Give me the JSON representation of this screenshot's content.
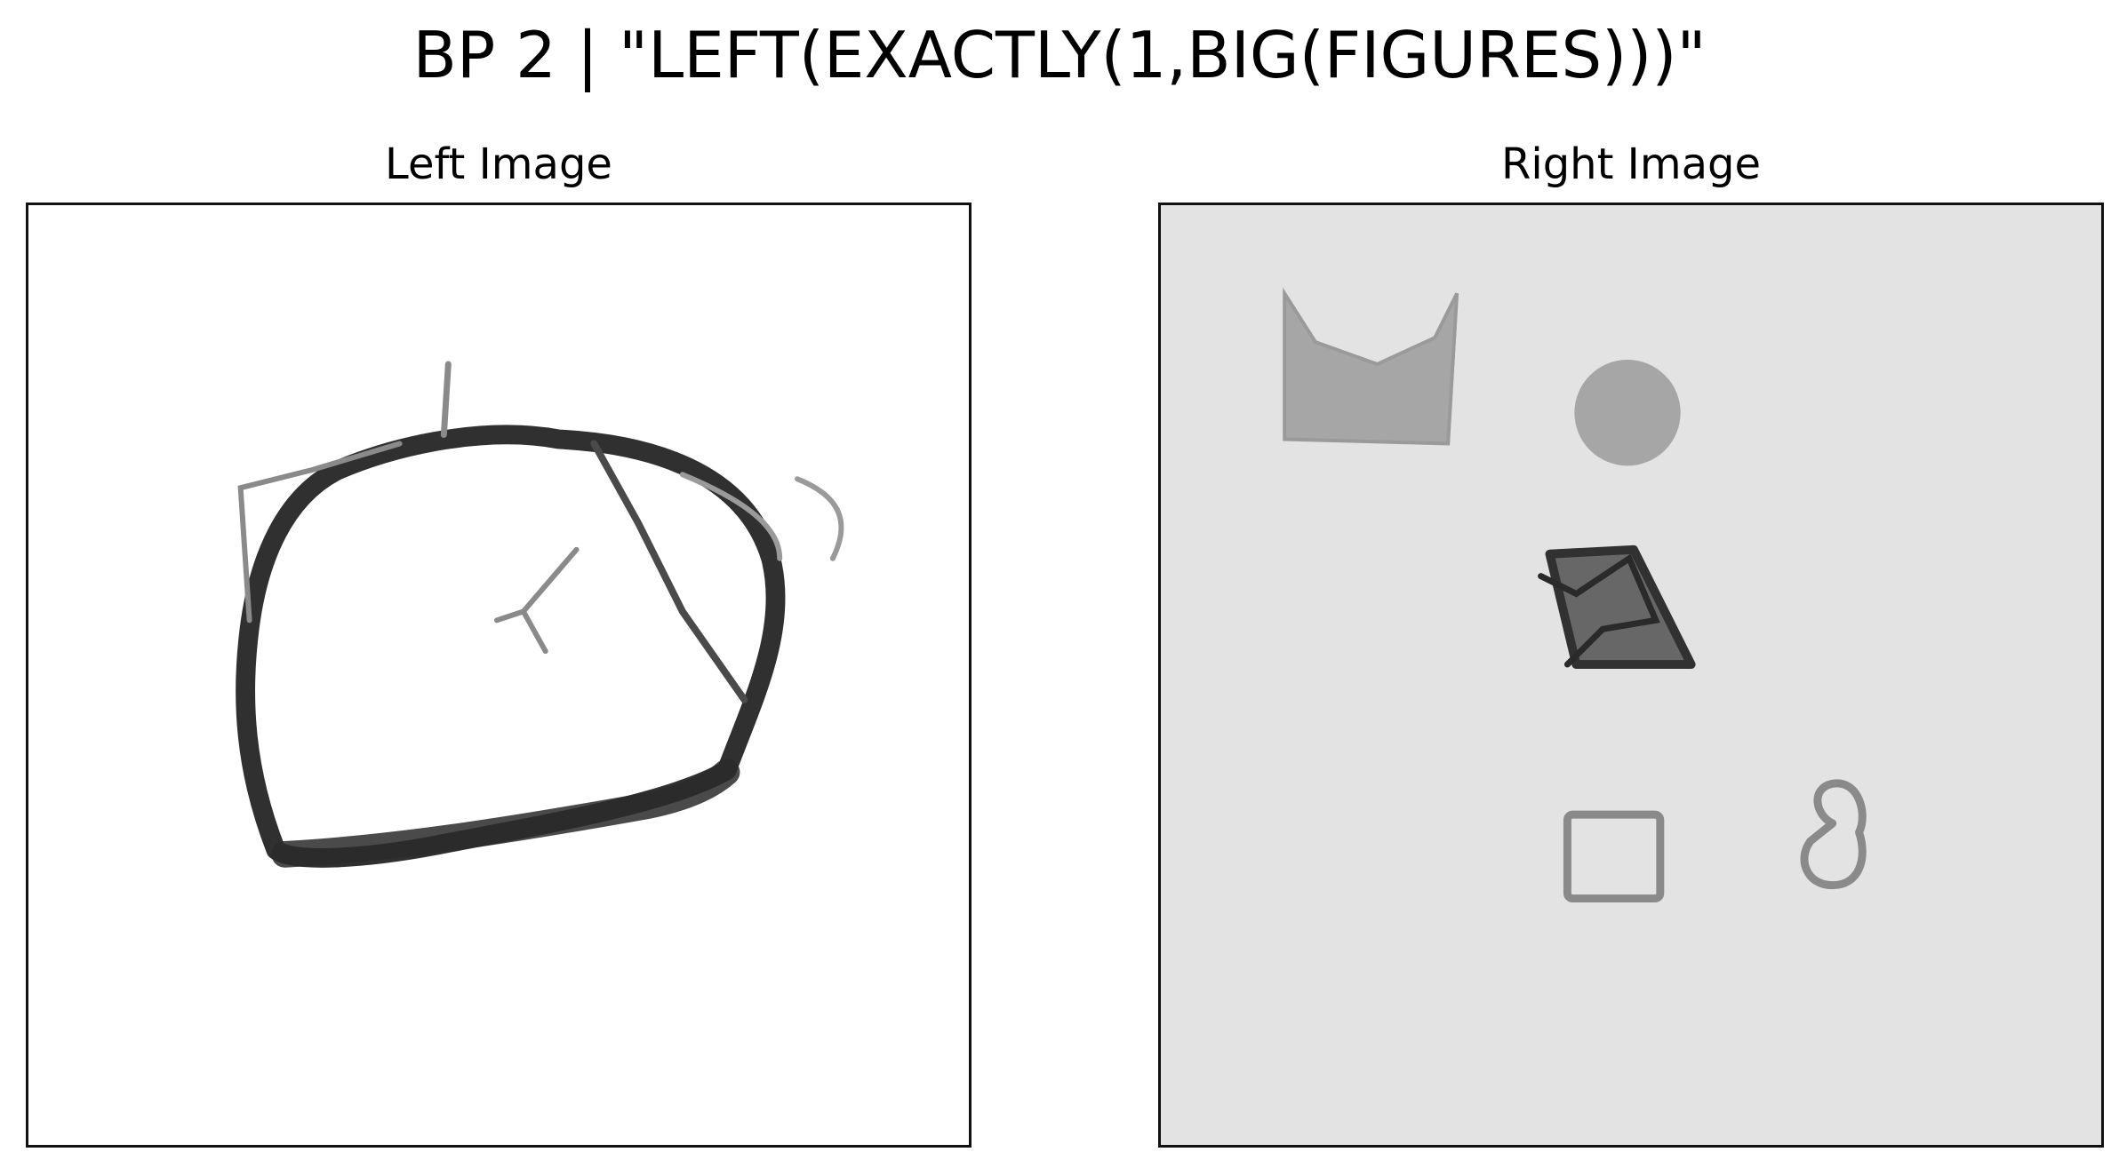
{
  "figure": {
    "title": "BP 2 | \"LEFT(EXACTLY(1,BIG(FIGURES)))\""
  },
  "panels": {
    "left": {
      "title": "Left Image",
      "background": "#ffffff"
    },
    "right": {
      "title": "Right Image",
      "background": "#e3e3e3"
    }
  },
  "colors": {
    "ink_dark": "#1e1e1e",
    "ink_mid": "#4a4a4a",
    "ink_light": "#8a8a8a",
    "fill_gray": "#a6a6a6",
    "frame": "#111111"
  }
}
